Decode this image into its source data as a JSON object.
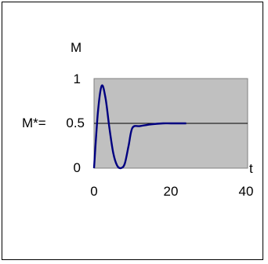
{
  "chart_data": {
    "type": "line",
    "title": "",
    "xlabel": "t",
    "ylabel": "M",
    "xlim": [
      0,
      40
    ],
    "ylim": [
      0,
      1
    ],
    "x_ticks": [
      "0",
      "20",
      "40"
    ],
    "y_ticks": [
      "0",
      "0.5",
      "1"
    ],
    "grid": false,
    "plot_background": "#c0c0c0",
    "reference_line": {
      "label": "M*=",
      "y": 0.5,
      "color": "#000000"
    },
    "series": [
      {
        "color": "#000080",
        "x": [
          0,
          1,
          2,
          3,
          4,
          5,
          6,
          7,
          8,
          9,
          10,
          12,
          15,
          18,
          20,
          24
        ],
        "y": [
          0,
          0.62,
          0.92,
          0.78,
          0.45,
          0.17,
          0.03,
          0.0,
          0.05,
          0.25,
          0.45,
          0.47,
          0.49,
          0.5,
          0.5,
          0.5
        ]
      }
    ]
  }
}
